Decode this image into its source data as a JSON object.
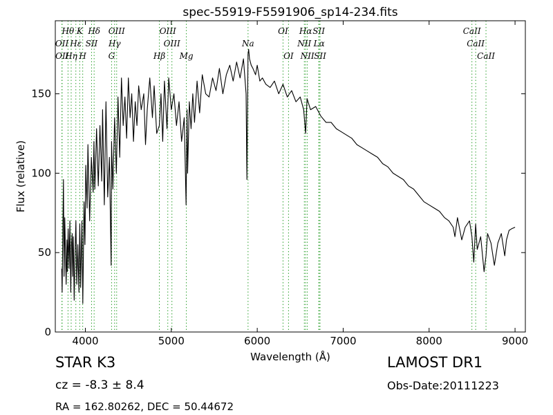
{
  "chart_data": {
    "type": "line",
    "title": "spec-55919-F5591906_sp14-234.fits",
    "xlabel": "Wavelength (Å)",
    "ylabel": "Flux (relative)",
    "xlim": [
      3650,
      9120
    ],
    "ylim": [
      0,
      196
    ],
    "xticks": [
      4000,
      5000,
      6000,
      7000,
      8000,
      9000
    ],
    "yticks": [
      0,
      50,
      100,
      150
    ],
    "grid": false,
    "line_color": "#000000",
    "marker_color": "#2ca02c",
    "spectrum": {
      "x": [
        3725,
        3730,
        3737,
        3745,
        3752,
        3760,
        3768,
        3776,
        3785,
        3790,
        3800,
        3810,
        3820,
        3830,
        3838,
        3846,
        3852,
        3860,
        3870,
        3880,
        3890,
        3900,
        3912,
        3925,
        3935,
        3945,
        3960,
        3970,
        3985,
        3995,
        4005,
        4020,
        4030,
        4050,
        4070,
        4090,
        4100,
        4110,
        4130,
        4150,
        4170,
        4190,
        4200,
        4220,
        4240,
        4260,
        4280,
        4300,
        4305,
        4320,
        4340,
        4360,
        4380,
        4400,
        4420,
        4440,
        4460,
        4480,
        4500,
        4520,
        4540,
        4560,
        4580,
        4600,
        4620,
        4650,
        4680,
        4700,
        4720,
        4750,
        4780,
        4800,
        4830,
        4861,
        4880,
        4900,
        4920,
        4950,
        4970,
        5000,
        5030,
        5060,
        5090,
        5120,
        5150,
        5172,
        5183,
        5190,
        5210,
        5230,
        5250,
        5270,
        5300,
        5330,
        5360,
        5400,
        5440,
        5480,
        5520,
        5560,
        5600,
        5640,
        5680,
        5720,
        5760,
        5800,
        5840,
        5870,
        5880,
        5893,
        5900,
        5910,
        5930,
        5950,
        5980,
        6000,
        6030,
        6060,
        6100,
        6150,
        6200,
        6250,
        6300,
        6350,
        6400,
        6450,
        6500,
        6540,
        6563,
        6580,
        6620,
        6680,
        6740,
        6800,
        6860,
        6920,
        6980,
        7040,
        7100,
        7160,
        7220,
        7280,
        7340,
        7400,
        7460,
        7520,
        7580,
        7640,
        7700,
        7760,
        7820,
        7880,
        7940,
        8000,
        8060,
        8120,
        8180,
        8230,
        8280,
        8300,
        8330,
        8380,
        8420,
        8470,
        8498,
        8520,
        8542,
        8560,
        8600,
        8640,
        8662,
        8680,
        8720,
        8760,
        8800,
        8840,
        8880,
        8900,
        8930,
        8960,
        9000
      ],
      "y": [
        40,
        25,
        60,
        96,
        35,
        72,
        50,
        30,
        58,
        38,
        65,
        40,
        70,
        25,
        55,
        62,
        35,
        60,
        20,
        50,
        70,
        30,
        55,
        25,
        68,
        28,
        70,
        18,
        82,
        55,
        105,
        78,
        118,
        70,
        110,
        88,
        120,
        90,
        128,
        92,
        130,
        95,
        140,
        80,
        145,
        85,
        110,
        42,
        120,
        90,
        135,
        100,
        148,
        110,
        160,
        130,
        148,
        122,
        160,
        135,
        150,
        120,
        145,
        130,
        155,
        140,
        150,
        118,
        140,
        160,
        135,
        155,
        125,
        130,
        150,
        120,
        158,
        128,
        160,
        140,
        150,
        130,
        145,
        120,
        135,
        80,
        140,
        100,
        145,
        128,
        150,
        132,
        158,
        138,
        162,
        150,
        148,
        160,
        152,
        166,
        150,
        162,
        168,
        158,
        170,
        160,
        172,
        150,
        96,
        175,
        178,
        172,
        168,
        166,
        162,
        168,
        158,
        160,
        156,
        154,
        158,
        150,
        156,
        148,
        152,
        145,
        148,
        140,
        125,
        147,
        140,
        142,
        136,
        132,
        132,
        128,
        126,
        124,
        122,
        118,
        116,
        114,
        112,
        110,
        106,
        104,
        100,
        98,
        96,
        92,
        90,
        86,
        82,
        80,
        78,
        76,
        72,
        70,
        66,
        60,
        72,
        58,
        66,
        70,
        60,
        44,
        68,
        52,
        60,
        38,
        48,
        62,
        56,
        42,
        56,
        62,
        48,
        58,
        64,
        65,
        66
      ]
    },
    "lines": [
      {
        "label": "Hθ",
        "x": 3798,
        "row": 1
      },
      {
        "label": "K",
        "x": 3934,
        "row": 1
      },
      {
        "label": "Hδ",
        "x": 4102,
        "row": 1
      },
      {
        "label": "OIII",
        "x": 4364,
        "row": 1
      },
      {
        "label": "OIII",
        "x": 4959,
        "row": 1
      },
      {
        "label": "OI",
        "x": 6300,
        "row": 1
      },
      {
        "label": "Hα",
        "x": 6563,
        "row": 1
      },
      {
        "label": "SII",
        "x": 6716,
        "row": 1
      },
      {
        "label": "CaII",
        "x": 8498,
        "row": 1
      },
      {
        "label": "OII",
        "x": 3727,
        "row": 2
      },
      {
        "label": "Hε",
        "x": 3889,
        "row": 2
      },
      {
        "label": "SII",
        "x": 4072,
        "row": 2
      },
      {
        "label": "Hγ",
        "x": 4340,
        "row": 2
      },
      {
        "label": "OIII",
        "x": 5007,
        "row": 2
      },
      {
        "label": "Na",
        "x": 5893,
        "row": 2
      },
      {
        "label": "NII",
        "x": 6548,
        "row": 2
      },
      {
        "label": "Lα",
        "x": 6720,
        "row": 2
      },
      {
        "label": "CaII",
        "x": 8542,
        "row": 2
      },
      {
        "label": "OII",
        "x": 3729,
        "row": 3
      },
      {
        "label": "Hη",
        "x": 3835,
        "row": 3
      },
      {
        "label": "H",
        "x": 3969,
        "row": 3
      },
      {
        "label": "G",
        "x": 4305,
        "row": 3
      },
      {
        "label": "Hβ",
        "x": 4861,
        "row": 3
      },
      {
        "label": "Mg",
        "x": 5175,
        "row": 3
      },
      {
        "label": "OI",
        "x": 6364,
        "row": 3
      },
      {
        "label": "NII",
        "x": 6583,
        "row": 3
      },
      {
        "label": "SII",
        "x": 6731,
        "row": 3
      },
      {
        "label": "CaII",
        "x": 8662,
        "row": 3
      }
    ]
  },
  "info": {
    "object_class": "STAR   K3",
    "redshift": "cz = -8.3 ± 8.4",
    "coordinates": "RA = 162.80262, DEC = 50.44672",
    "survey": "LAMOST DR1",
    "obs_date": "Obs-Date:20111223"
  }
}
